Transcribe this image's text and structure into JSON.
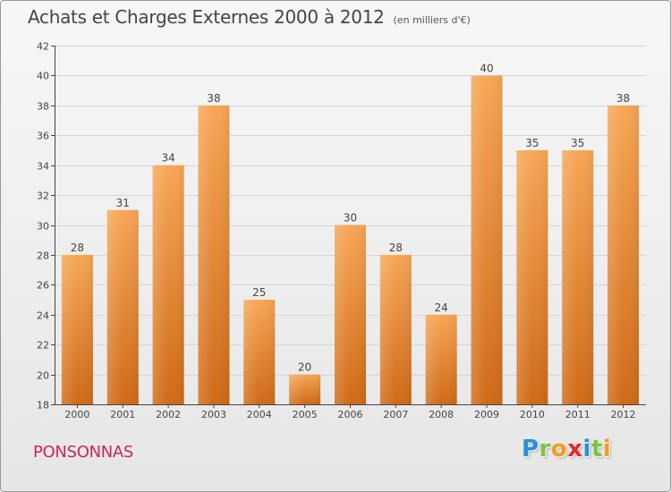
{
  "header": {
    "title": "Achats et Charges Externes 2000 à 2012",
    "unit": "(en milliers d'€)"
  },
  "footer": {
    "city": "PONSONNAS",
    "logo_letters": [
      {
        "char": "P",
        "color": "#2b8fd6"
      },
      {
        "char": "r",
        "color": "#7cc242"
      },
      {
        "char": "o",
        "color": "#f39c1f"
      },
      {
        "char": "x",
        "color": "#e4262b"
      },
      {
        "char": "i",
        "color": "#2b8fd6"
      },
      {
        "char": "t",
        "color": "#7cc242"
      },
      {
        "char": "i",
        "color": "#f39c1f"
      }
    ]
  },
  "colors": {
    "bar_top": "#f6a655",
    "bar_bottom": "#cf6a17",
    "axis": "#444444",
    "grid": "#d6d6d6"
  },
  "chart_data": {
    "type": "bar",
    "title": "Achats et Charges Externes 2000 à 2012",
    "subtitle": "(en milliers d'€)",
    "categories": [
      "2000",
      "2001",
      "2002",
      "2003",
      "2004",
      "2005",
      "2006",
      "2007",
      "2008",
      "2009",
      "2010",
      "2011",
      "2012"
    ],
    "values": [
      28,
      31,
      34,
      38,
      25,
      20,
      30,
      28,
      24,
      40,
      35,
      35,
      38
    ],
    "ylim": [
      18,
      42
    ],
    "yticks": [
      18,
      20,
      22,
      24,
      26,
      28,
      30,
      32,
      34,
      36,
      38,
      40,
      42
    ],
    "grid": true,
    "legend": "none"
  }
}
